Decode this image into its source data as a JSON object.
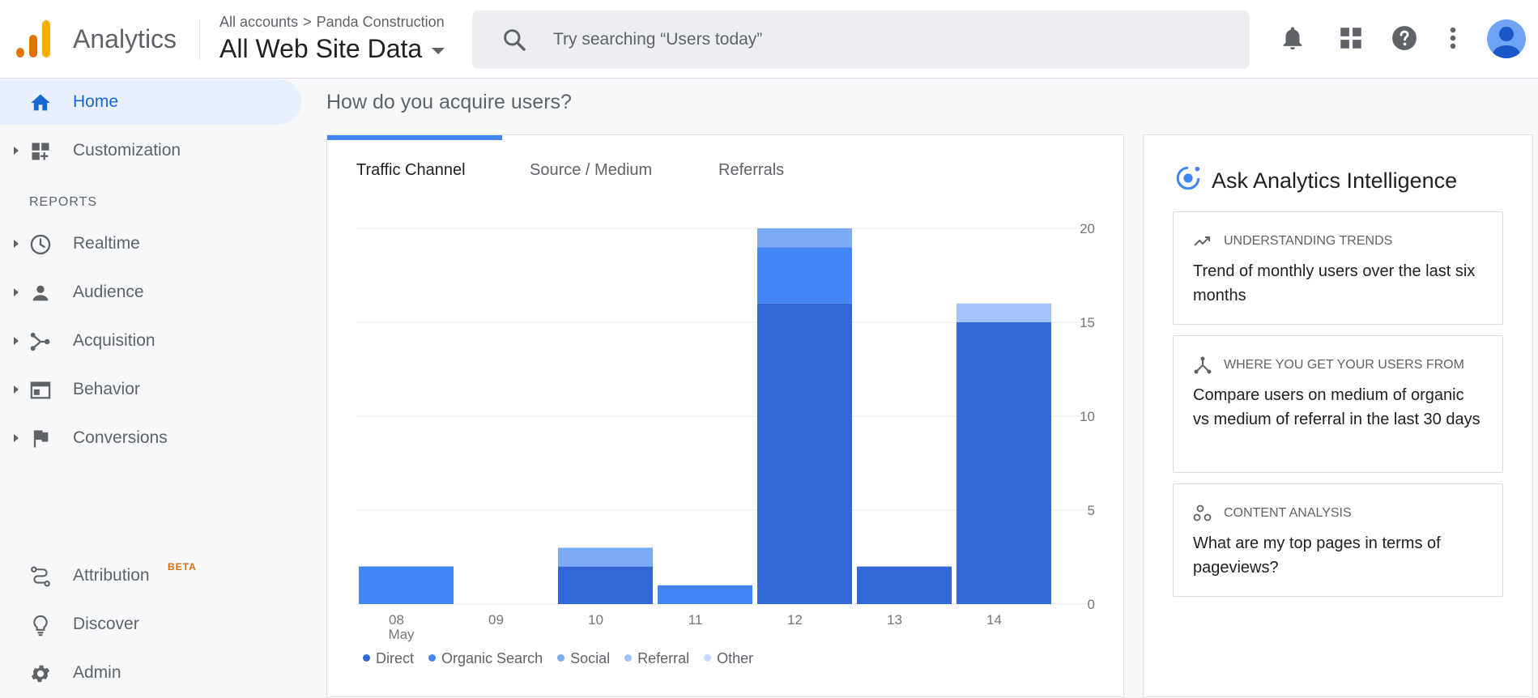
{
  "header": {
    "app_name": "Analytics",
    "breadcrumb": {
      "account": "All accounts",
      "separator": ">",
      "property": "Panda Construction"
    },
    "view": "All Web Site Data",
    "search_placeholder": "Try searching “Users today”",
    "icons": [
      "bell-icon",
      "apps-grid-icon",
      "help-icon",
      "more-vert-icon"
    ],
    "logo_colors": [
      "#f9ab00",
      "#e37400",
      "#e37400"
    ]
  },
  "sidebar": {
    "home": "Home",
    "customization": "Customization",
    "reports_header": "REPORTS",
    "reports": [
      "Realtime",
      "Audience",
      "Acquisition",
      "Behavior",
      "Conversions"
    ],
    "attribution": "Attribution",
    "beta": "BETA",
    "discover": "Discover",
    "admin": "Admin"
  },
  "main": {
    "section_title": "How do you acquire users?",
    "tabs": [
      "Traffic Channel",
      "Source / Medium",
      "Referrals"
    ],
    "active_tab": 0
  },
  "chart_data": {
    "type": "bar",
    "stacked": true,
    "categories": [
      "08",
      "09",
      "10",
      "11",
      "12",
      "13",
      "14"
    ],
    "category_sublabels": [
      "May",
      "",
      "",
      "",
      "",
      "",
      ""
    ],
    "series": [
      {
        "name": "Direct",
        "color": "#3367d6",
        "values": [
          0,
          0,
          2,
          0,
          16,
          2,
          15
        ]
      },
      {
        "name": "Organic Search",
        "color": "#4285f4",
        "values": [
          2,
          0,
          0,
          1,
          3,
          0,
          0
        ]
      },
      {
        "name": "Social",
        "color": "#7baaf7",
        "values": [
          0,
          0,
          1,
          0,
          1,
          0,
          0
        ]
      },
      {
        "name": "Referral",
        "color": "#a1c2fa",
        "values": [
          0,
          0,
          0,
          0,
          0,
          0,
          1
        ]
      },
      {
        "name": "Other",
        "color": "#c6dafc",
        "values": [
          0,
          0,
          0,
          0,
          0,
          0,
          0
        ]
      }
    ],
    "y_ticks": [
      "0",
      "5",
      "10",
      "15",
      "20"
    ],
    "ylim": [
      0,
      20
    ],
    "grid": true,
    "legend": "bottom",
    "axis_position": "right"
  },
  "ai_panel": {
    "title": "Ask Analytics Intelligence",
    "questions": [
      {
        "category": "UNDERSTANDING TRENDS",
        "icon": "trending-up-icon",
        "text": "Trend of monthly users over the last six months"
      },
      {
        "category": "WHERE YOU GET YOUR USERS FROM",
        "icon": "source-tree-icon",
        "text": "Compare users on medium of organic vs medium of referral in the last 30 days"
      },
      {
        "category": "CONTENT ANALYSIS",
        "icon": "content-circles-icon",
        "text": "What are my top pages in terms of pageviews?"
      }
    ]
  }
}
